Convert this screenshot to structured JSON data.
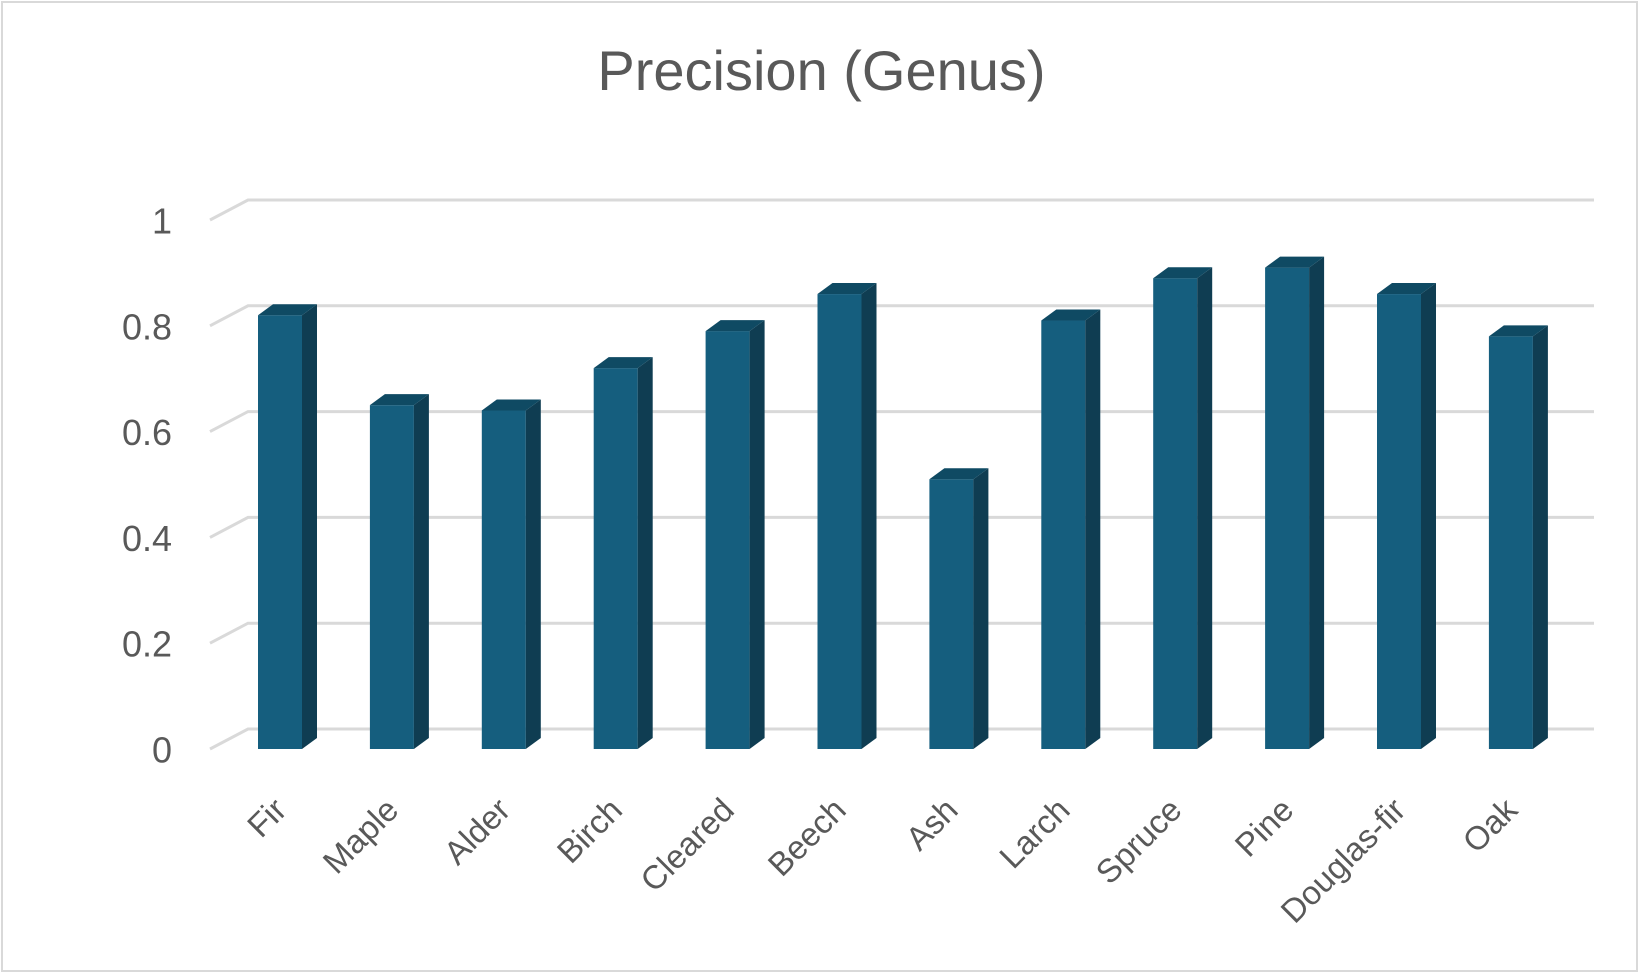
{
  "chart_data": {
    "type": "bar",
    "title": "Precision (Genus)",
    "xlabel": "",
    "ylabel": "",
    "categories": [
      "Fir",
      "Maple",
      "Alder",
      "Birch",
      "Cleared",
      "Beech",
      "Ash",
      "Larch",
      "Spruce",
      "Pine",
      "Douglas-fir",
      "Oak"
    ],
    "values": [
      0.82,
      0.65,
      0.64,
      0.72,
      0.79,
      0.86,
      0.51,
      0.81,
      0.89,
      0.91,
      0.86,
      0.78
    ],
    "ylim": [
      0,
      1
    ],
    "yticks": [
      "0",
      "0.2",
      "0.4",
      "0.6",
      "0.8",
      "1"
    ],
    "grid": true,
    "legend": "none",
    "style": "3d-column",
    "colors": {
      "bar_front": "#155e7e",
      "bar_side": "#0f3d52",
      "bar_top": "#0f4a63",
      "grid": "#d9d9d9",
      "text": "#595959"
    }
  }
}
